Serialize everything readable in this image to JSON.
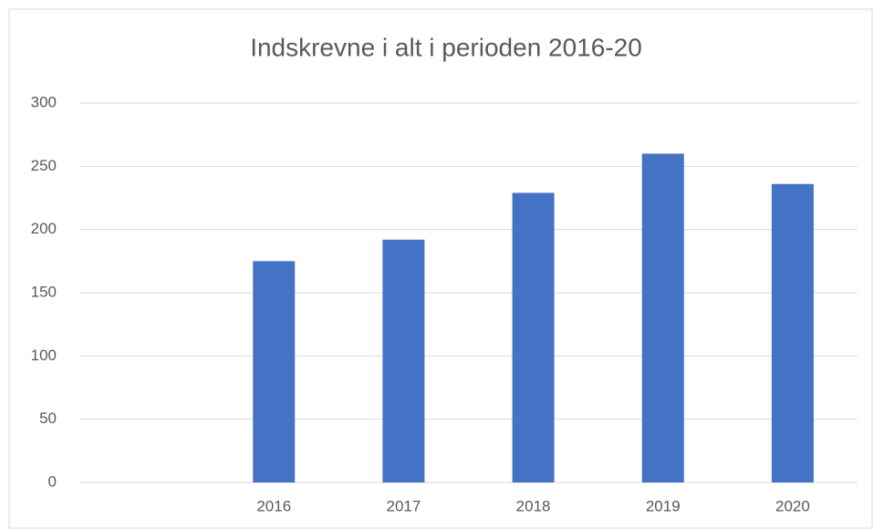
{
  "chart_data": {
    "type": "bar",
    "title": "Indskrevne i alt i perioden 2016-20",
    "categories": [
      null,
      "2016",
      "2017",
      "2018",
      "2019",
      "2020"
    ],
    "values": [
      null,
      175,
      192,
      229,
      260,
      236
    ],
    "color": "#4472c4",
    "ylim": [
      0,
      300
    ],
    "yticks": [
      0,
      50,
      100,
      150,
      200,
      250,
      300
    ],
    "grid": true
  }
}
